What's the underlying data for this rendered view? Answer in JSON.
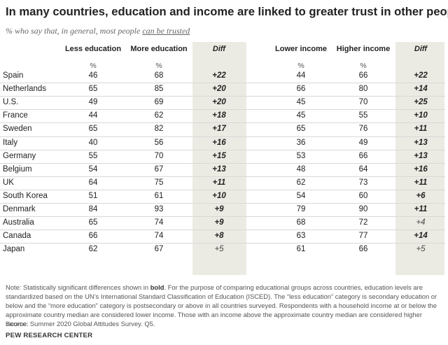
{
  "title": "In many countries, education and income are linked to greater trust in other people",
  "subtitle_prefix": "% who say that, in general, most people ",
  "subtitle_underlined": "can be trusted",
  "chart_data": {
    "type": "table",
    "columns": [
      "Less education",
      "More education",
      "Diff",
      "Lower income",
      "Higher income",
      "Diff"
    ],
    "unit_label": "%",
    "rows": [
      {
        "country": "Spain",
        "less_edu": 46,
        "more_edu": 68,
        "edu_diff": "+22",
        "edu_sig": true,
        "lower_inc": 44,
        "higher_inc": 66,
        "inc_diff": "+22",
        "inc_sig": true
      },
      {
        "country": "Netherlands",
        "less_edu": 65,
        "more_edu": 85,
        "edu_diff": "+20",
        "edu_sig": true,
        "lower_inc": 66,
        "higher_inc": 80,
        "inc_diff": "+14",
        "inc_sig": true
      },
      {
        "country": "U.S.",
        "less_edu": 49,
        "more_edu": 69,
        "edu_diff": "+20",
        "edu_sig": true,
        "lower_inc": 45,
        "higher_inc": 70,
        "inc_diff": "+25",
        "inc_sig": true
      },
      {
        "country": "France",
        "less_edu": 44,
        "more_edu": 62,
        "edu_diff": "+18",
        "edu_sig": true,
        "lower_inc": 45,
        "higher_inc": 55,
        "inc_diff": "+10",
        "inc_sig": true
      },
      {
        "country": "Sweden",
        "less_edu": 65,
        "more_edu": 82,
        "edu_diff": "+17",
        "edu_sig": true,
        "lower_inc": 65,
        "higher_inc": 76,
        "inc_diff": "+11",
        "inc_sig": true
      },
      {
        "country": "Italy",
        "less_edu": 40,
        "more_edu": 56,
        "edu_diff": "+16",
        "edu_sig": true,
        "lower_inc": 36,
        "higher_inc": 49,
        "inc_diff": "+13",
        "inc_sig": true
      },
      {
        "country": "Germany",
        "less_edu": 55,
        "more_edu": 70,
        "edu_diff": "+15",
        "edu_sig": true,
        "lower_inc": 53,
        "higher_inc": 66,
        "inc_diff": "+13",
        "inc_sig": true
      },
      {
        "country": "Belgium",
        "less_edu": 54,
        "more_edu": 67,
        "edu_diff": "+13",
        "edu_sig": true,
        "lower_inc": 48,
        "higher_inc": 64,
        "inc_diff": "+16",
        "inc_sig": true
      },
      {
        "country": "UK",
        "less_edu": 64,
        "more_edu": 75,
        "edu_diff": "+11",
        "edu_sig": true,
        "lower_inc": 62,
        "higher_inc": 73,
        "inc_diff": "+11",
        "inc_sig": true
      },
      {
        "country": "South Korea",
        "less_edu": 51,
        "more_edu": 61,
        "edu_diff": "+10",
        "edu_sig": true,
        "lower_inc": 54,
        "higher_inc": 60,
        "inc_diff": "+6",
        "inc_sig": true
      },
      {
        "country": "Denmark",
        "less_edu": 84,
        "more_edu": 93,
        "edu_diff": "+9",
        "edu_sig": true,
        "lower_inc": 79,
        "higher_inc": 90,
        "inc_diff": "+11",
        "inc_sig": true
      },
      {
        "country": "Australia",
        "less_edu": 65,
        "more_edu": 74,
        "edu_diff": "+9",
        "edu_sig": true,
        "lower_inc": 68,
        "higher_inc": 72,
        "inc_diff": "+4",
        "inc_sig": false
      },
      {
        "country": "Canada",
        "less_edu": 66,
        "more_edu": 74,
        "edu_diff": "+8",
        "edu_sig": true,
        "lower_inc": 63,
        "higher_inc": 77,
        "inc_diff": "+14",
        "inc_sig": true
      },
      {
        "country": "Japan",
        "less_edu": 62,
        "more_edu": 67,
        "edu_diff": "+5",
        "edu_sig": false,
        "lower_inc": 61,
        "higher_inc": 66,
        "inc_diff": "+5",
        "inc_sig": false
      }
    ]
  },
  "note_prefix": "Note: Statistically significant differences shown in ",
  "note_bold": "bold",
  "note_rest": ". For the purpose of comparing educational groups across countries, education levels are standardized based on the UN’s International Standard Classification of Education (ISCED). The “less education” category is secondary education or below and the “more education” category is postsecondary or above in all countries surveyed. Respondents with a household income at or below the approximate country median are considered lower income. Those with an income above the approximate country median are considered higher income.",
  "source": "Source: Summer 2020 Global Attitudes Survey. Q5.",
  "footer": "PEW RESEARCH CENTER",
  "colors": {
    "diff_background": "#ecebe3",
    "row_divider": "#d8d8d8"
  }
}
